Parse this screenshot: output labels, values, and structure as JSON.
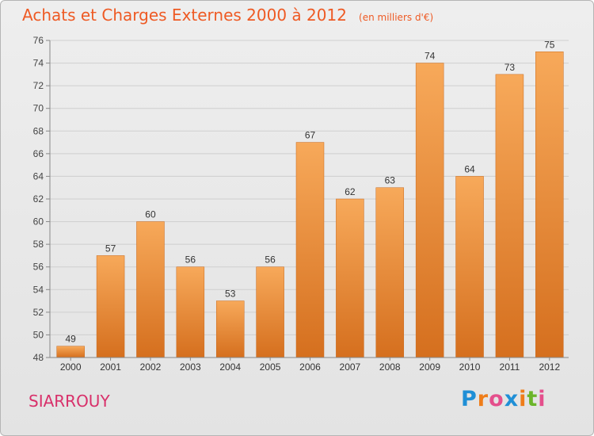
{
  "header": {
    "title": "Achats et Charges Externes 2000 à 2012",
    "unit": "(en milliers d'€)"
  },
  "footer": {
    "commune": "SIARROUY",
    "logo": [
      "P",
      "r",
      "o",
      "x",
      "i",
      "t",
      "i"
    ]
  },
  "colors": {
    "title": "#ee5a24",
    "commune": "#d8306a",
    "bar_top": "#f7a95a",
    "bar_bottom": "#d56f1e",
    "logo_letters": [
      "#1f8fd6",
      "#ef7d1a",
      "#e44f8c",
      "#1f8fd6",
      "#ef7d1a",
      "#6bb52a",
      "#e44f8c"
    ]
  },
  "chart_data": {
    "type": "bar",
    "categories": [
      "2000",
      "2001",
      "2002",
      "2003",
      "2004",
      "2005",
      "2006",
      "2007",
      "2008",
      "2009",
      "2010",
      "2011",
      "2012"
    ],
    "values": [
      49,
      57,
      60,
      56,
      53,
      56,
      67,
      62,
      63,
      74,
      64,
      73,
      75
    ],
    "ylim": [
      48,
      76
    ],
    "yticks": [
      48,
      50,
      52,
      54,
      56,
      58,
      60,
      62,
      64,
      66,
      68,
      70,
      72,
      74,
      76
    ],
    "grid": true,
    "legend": "none"
  }
}
